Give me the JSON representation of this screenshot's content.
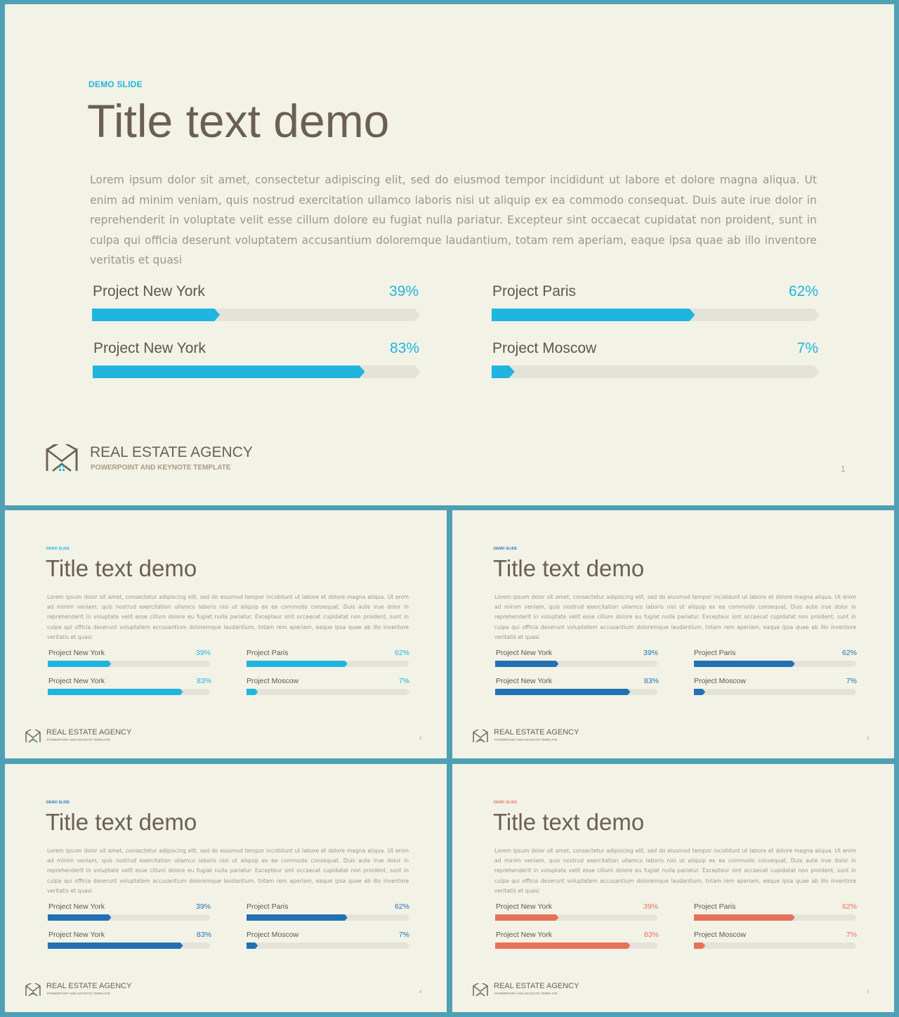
{
  "slides": [
    {
      "eyebrow": "DEMO SLIDE",
      "title": "Title text demo",
      "body": "Lorem ipsum dolor sit amet, consectetur adipiscing elit, sed do eiusmod tempor incididunt ut labore et dolore magna aliqua. Ut enim ad minim veniam, quis nostrud exercitation ullamco laboris nisi ut aliquip ex ea commodo consequat. Duis aute irue dolor in reprehenderit in voluptate velit esse cillum dolore eu fugiat nulla pariatur. Excepteur sint occaecat cupidatat non proident, sunt in culpa qui officia deserunt voluptatem accusantium doloremque laudantium, totam rem aperiam, eaque ipsa quae ab illo inventore veritatis et quasi",
      "bars": [
        {
          "label": "Project New York",
          "percent_text": "39%",
          "value": 0.39
        },
        {
          "label": "Project Paris",
          "percent_text": "62%",
          "value": 0.62
        },
        {
          "label": "Project New York",
          "percent_text": "83%",
          "value": 0.83
        },
        {
          "label": "Project Moscow",
          "percent_text": "7%",
          "value": 0.07
        }
      ],
      "brand": "REAL ESTATE AGENCY",
      "tagline": "POWERPOINT AND KEYNOTE TEMPLATE",
      "page_number": "1",
      "accent_color": "#1fb5df",
      "eyebrow_color": "#1fb5df"
    },
    {
      "eyebrow": "DEMO SLIDE",
      "title": "Title text demo",
      "body": "Lorem ipsum dolor sit amet, consectetur adipiscing elit, sed do eiusmod tempor incididunt ut labore et dolore magna aliqua. Ut enim ad minim veniam, quis nostrud exercitation ullamco laboris nisi ut aliquip ex ea commodo consequat. Duis aute irue dolor in reprehenderit in voluptate velit esse cillum dolore eu fugiat nulla pariatur. Excepteur sint occaecat cupidatat non proident, sunt in culpa qui officia deserunt voluptatem accusantium doloremque laudantium, totam rem aperiam, eaque ipsa quae ab illo inventore veritatis et quasi",
      "bars": [
        {
          "label": "Project New York",
          "percent_text": "39%",
          "value": 0.39
        },
        {
          "label": "Project Paris",
          "percent_text": "62%",
          "value": 0.62
        },
        {
          "label": "Project New York",
          "percent_text": "83%",
          "value": 0.83
        },
        {
          "label": "Project Moscow",
          "percent_text": "7%",
          "value": 0.07
        }
      ],
      "brand": "REAL ESTATE AGENCY",
      "tagline": "POWERPOINT AND KEYNOTE TEMPLATE",
      "page_number": "2",
      "accent_color": "#1fb5df",
      "eyebrow_color": "#1fb5df"
    },
    {
      "eyebrow": "DEMO SLIDE",
      "title": "Title text demo",
      "body": "Lorem ipsum dolor sit amet, consectetur adipiscing elit, sed do eiusmod tempor incididunt ut labore et dolore magna aliqua. Ut enim ad minim veniam, quis nostrud exercitation ullamco laboris nisi ut aliquip ex ea commodo consequat. Duis aute irue dolor in reprehenderit in voluptate velit esse cillum dolore eu fugiat nulla pariatur. Excepteur sint occaecat cupidatat non proident, sunt in culpa qui officia deserunt voluptatem accusantium doloremque laudantium, totam rem aperiam, eaque ipsa quae ab illo inventore veritatis et quasi",
      "bars": [
        {
          "label": "Project New York",
          "percent_text": "39%",
          "value": 0.39
        },
        {
          "label": "Project Paris",
          "percent_text": "62%",
          "value": 0.62
        },
        {
          "label": "Project New York",
          "percent_text": "83%",
          "value": 0.83
        },
        {
          "label": "Project Moscow",
          "percent_text": "7%",
          "value": 0.07
        }
      ],
      "brand": "REAL ESTATE AGENCY",
      "tagline": "POWERPOINT AND KEYNOTE TEMPLATE",
      "page_number": "3",
      "accent_color": "#2271b5",
      "eyebrow_color": "#2271b5"
    },
    {
      "eyebrow": "DEMO SLIDE",
      "title": "Title text demo",
      "body": "Lorem ipsum dolor sit amet, consectetur adipiscing elit, sed do eiusmod tempor incididunt ut labore et dolore magna aliqua. Ut enim ad minim veniam, quis nostrud exercitation ullamco laboris nisi ut aliquip ex ea commodo consequat. Duis aute irue dolor in reprehenderit in voluptate velit esse cillum dolore eu fugiat nulla pariatur. Excepteur sint occaecat cupidatat non proident, sunt in culpa qui officia deserunt voluptatem accusantium doloremque laudantium, totam rem aperiam, eaque ipsa quae ab illo inventore veritatis et quasi",
      "bars": [
        {
          "label": "Project New York",
          "percent_text": "39%",
          "value": 0.39
        },
        {
          "label": "Project Paris",
          "percent_text": "62%",
          "value": 0.62
        },
        {
          "label": "Project New York",
          "percent_text": "83%",
          "value": 0.83
        },
        {
          "label": "Project Moscow",
          "percent_text": "7%",
          "value": 0.07
        }
      ],
      "brand": "REAL ESTATE AGENCY",
      "tagline": "POWERPOINT AND KEYNOTE TEMPLATE",
      "page_number": "4",
      "accent_color": "#2271b5",
      "eyebrow_color": "#2271b5"
    },
    {
      "eyebrow": "DEMO SLIDE",
      "title": "Title text demo",
      "body": "Lorem ipsum dolor sit amet, consectetur adipiscing elit, sed do eiusmod tempor incididunt ut labore et dolore magna aliqua. Ut enim ad minim veniam, quis nostrud exercitation ullamco laboris nisi ut aliquip ex ea commodo consequat. Duis aute irue dolor in reprehenderit in voluptate velit esse cillum dolore eu fugiat nulla pariatur. Excepteur sint occaecat cupidatat non proident, sunt in culpa qui officia deserunt voluptatem accusantium doloremque laudantium, totam rem aperiam, eaque ipsa quae ab illo inventore veritatis et quasi",
      "bars": [
        {
          "label": "Project New York",
          "percent_text": "39%",
          "value": 0.39
        },
        {
          "label": "Project Paris",
          "percent_text": "62%",
          "value": 0.62
        },
        {
          "label": "Project New York",
          "percent_text": "83%",
          "value": 0.83
        },
        {
          "label": "Project Moscow",
          "percent_text": "7%",
          "value": 0.07
        }
      ],
      "brand": "REAL ESTATE AGENCY",
      "tagline": "POWERPOINT AND KEYNOTE TEMPLATE",
      "page_number": "5",
      "accent_color": "#e8715a",
      "eyebrow_color": "#e8715a"
    }
  ],
  "colors": {
    "frame": "#4fa0b5",
    "slide_background": "#f2f2e6",
    "title_text": "#6b5f52",
    "bar_track": "#e4e3d9"
  },
  "icons": {
    "logo": "house-chevron-logo-icon"
  }
}
